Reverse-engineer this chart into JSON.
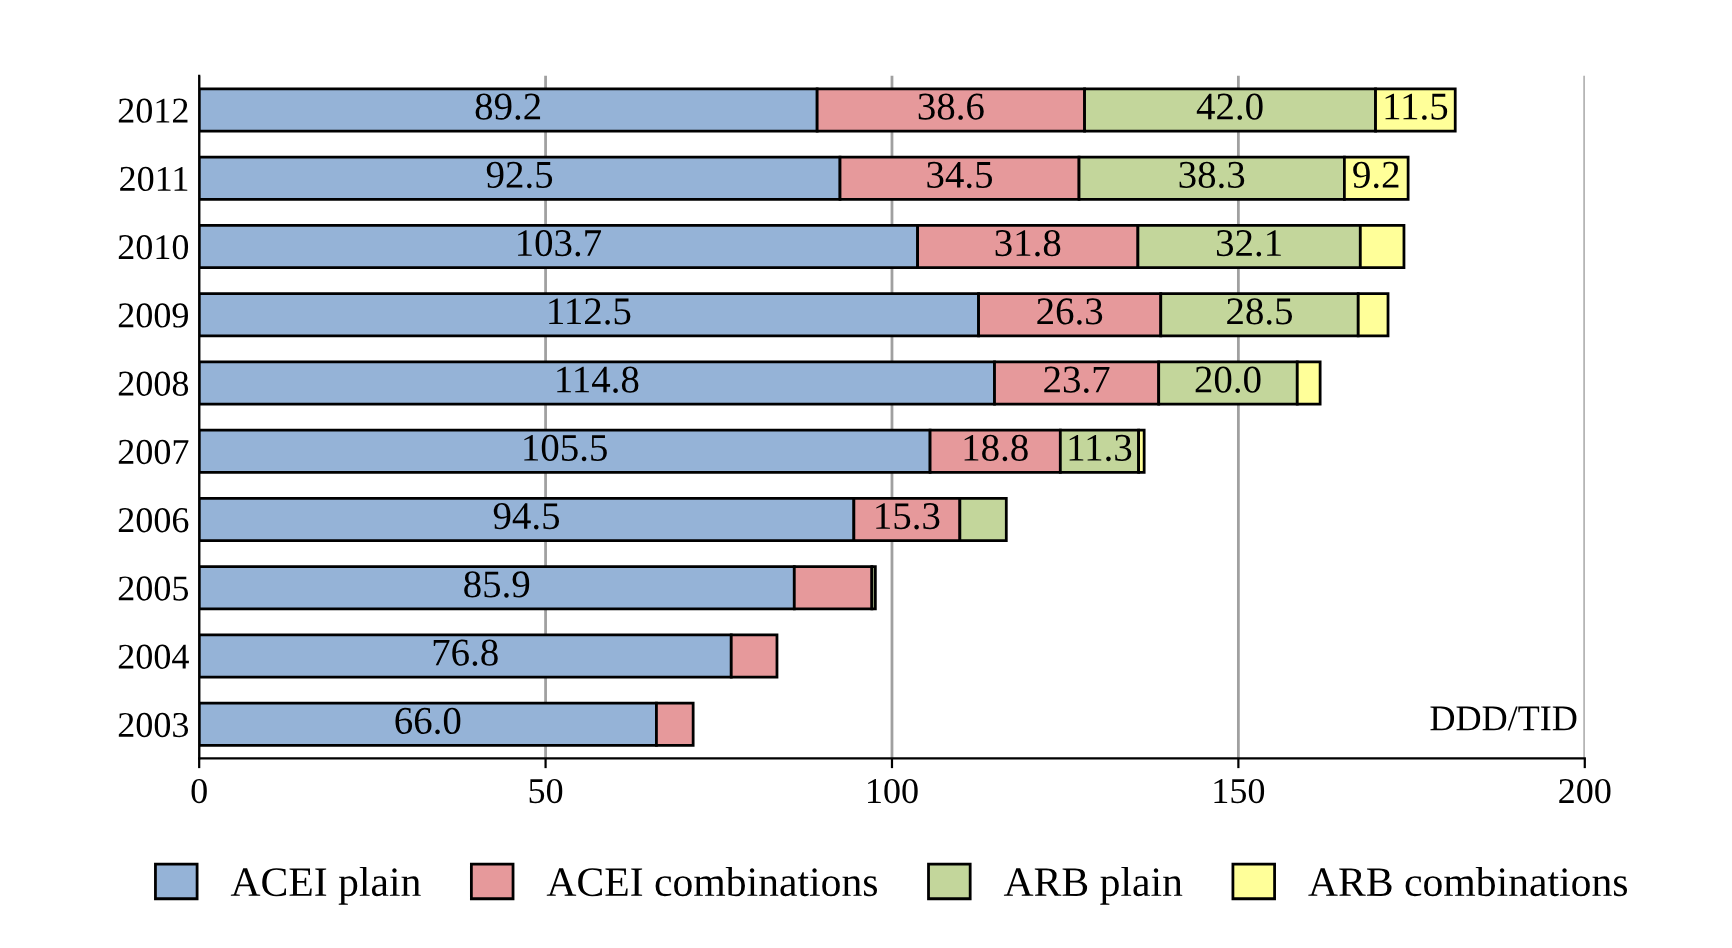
{
  "chart_data": {
    "type": "bar",
    "orientation": "horizontal",
    "stacked": true,
    "categories": [
      "2012",
      "2011",
      "2010",
      "2009",
      "2008",
      "2007",
      "2006",
      "2005",
      "2004",
      "2003"
    ],
    "series": [
      {
        "name": "ACEI plain",
        "color": "#95b3d7",
        "values": [
          89.2,
          92.5,
          103.7,
          112.5,
          114.8,
          105.5,
          94.5,
          85.9,
          76.8,
          66.0
        ],
        "value_labels": [
          "89.2",
          "92.5",
          "103.7",
          "112.5",
          "114.8",
          "105.5",
          "94.5",
          "85.9",
          "76.8",
          "66.0"
        ]
      },
      {
        "name": "ACEI combinations",
        "color": "#e6999b",
        "values": [
          38.6,
          34.5,
          31.8,
          26.3,
          23.7,
          18.8,
          15.3,
          11.2,
          6.6,
          5.3
        ],
        "value_labels": [
          "38.6",
          "34.5",
          "31.8",
          "26.3",
          "23.7",
          "18.8",
          "15.3",
          null,
          null,
          null
        ]
      },
      {
        "name": "ARB plain",
        "color": "#c3d69b",
        "values": [
          42.0,
          38.3,
          32.1,
          28.5,
          20.0,
          11.3,
          6.7,
          0.5,
          null,
          null
        ],
        "value_labels": [
          "42.0",
          "38.3",
          "32.1",
          "28.5",
          "20.0",
          "11.3",
          null,
          null,
          null,
          null
        ]
      },
      {
        "name": "ARB combinations",
        "color": "#ffff99",
        "values": [
          11.5,
          9.2,
          6.3,
          4.3,
          3.3,
          0.8,
          null,
          null,
          null,
          null
        ],
        "value_labels": [
          "11.5",
          "9.2",
          null,
          null,
          null,
          null,
          null,
          null,
          null,
          null
        ]
      }
    ],
    "xlim": [
      0,
      200
    ],
    "xticks": [
      0,
      50,
      100,
      150,
      200
    ],
    "grid": "x",
    "legend": "bottom",
    "annotations": [
      "DDD/TID"
    ]
  }
}
